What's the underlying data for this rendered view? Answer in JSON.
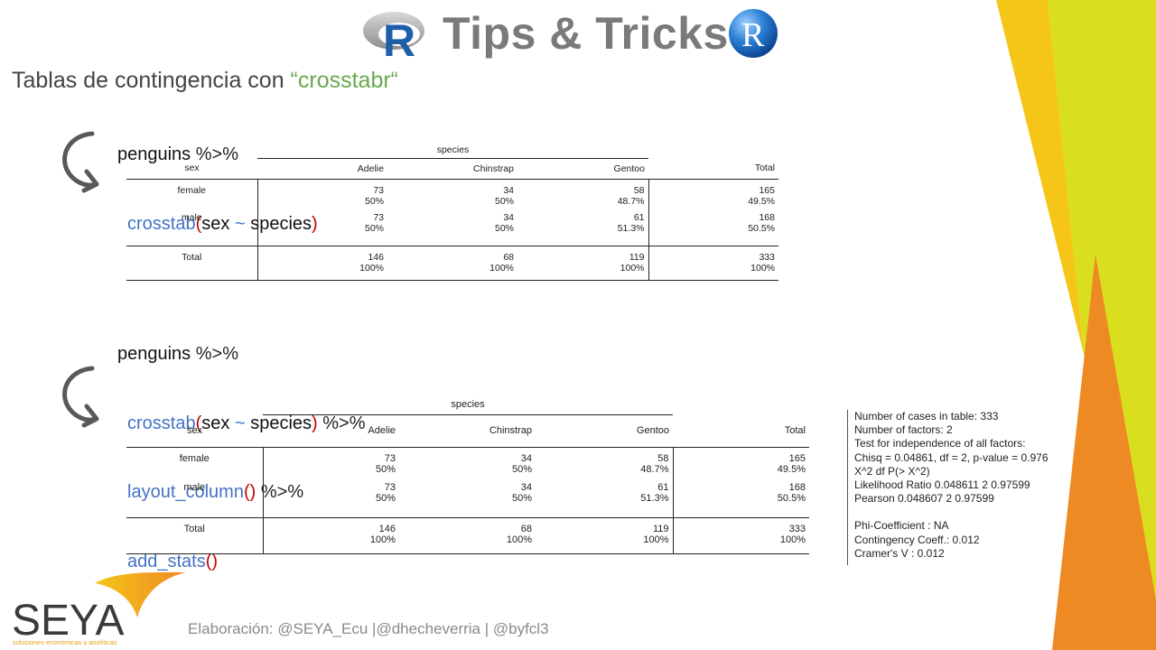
{
  "header": {
    "r_letter": "R",
    "title": "Tips & Tricks",
    "r_ball_letter": "R"
  },
  "subtitle": {
    "text": "Tablas de contingencia con ",
    "package": "“crosstabr“"
  },
  "code1": {
    "line1_obj": "penguins",
    "line1_pipe": " %>%",
    "fn": "crosstab",
    "open": "(",
    "args_a": "sex ",
    "tilde": "~",
    "args_b": " species",
    "close": ")"
  },
  "code2": {
    "line1_obj": "penguins",
    "line1_pipe": " %>%",
    "fn": "crosstab",
    "open": "(",
    "args_a": "sex ",
    "tilde": "~",
    "args_b": " species",
    "close": ")",
    "pipe": " %>%",
    "fn2": "layout_column",
    "fn2_parens": "()",
    "pipe2": " %>%",
    "fn3": "add_stats",
    "fn3_parens": "()"
  },
  "table": {
    "spanner": "species",
    "row_var": "sex",
    "columns": [
      "Adelie",
      "Chinstrap",
      "Gentoo"
    ],
    "total_label": "Total",
    "rows": [
      {
        "label": "female",
        "counts": [
          "73",
          "34",
          "58"
        ],
        "total": "165",
        "pcts": [
          "50%",
          "50%",
          "48.7%"
        ],
        "total_pct": "49.5%"
      },
      {
        "label": "male",
        "counts": [
          "73",
          "34",
          "61"
        ],
        "total": "168",
        "pcts": [
          "50%",
          "50%",
          "51.3%"
        ],
        "total_pct": "50.5%"
      }
    ],
    "total_row": {
      "label": "Total",
      "counts": [
        "146",
        "68",
        "119"
      ],
      "total": "333",
      "pcts": [
        "100%",
        "100%",
        "100%"
      ],
      "total_pct": "100%"
    }
  },
  "stats": {
    "lines": [
      "Number of cases in table: 333",
      "Number of factors: 2",
      "Test for independence of all factors:",
      "Chisq = 0.04861, df = 2, p-value = 0.976",
      "X^2 df P(> X^2)",
      "Likelihood Ratio 0.048611 2 0.97599",
      "Pearson 0.048607 2 0.97599",
      "",
      "Phi-Coefficient : NA",
      "Contingency Coeff.: 0.012",
      "Cramer's V : 0.012"
    ]
  },
  "footer": {
    "text": "Elaboración: @SEYA_Ecu |@dhecheverria | @byfcl3"
  },
  "logo": {
    "name": "SEYA",
    "tagline": "soluciones económicas y analíticas"
  },
  "colors": {
    "code_fn": "#4472c4",
    "code_paren": "#c00000",
    "pkg_green": "#6aa84f",
    "title_gray": "#7a7a7a",
    "decor_yellow": "#f5c518",
    "decor_lime": "#d9de1f",
    "decor_orange": "#ee8a24"
  }
}
